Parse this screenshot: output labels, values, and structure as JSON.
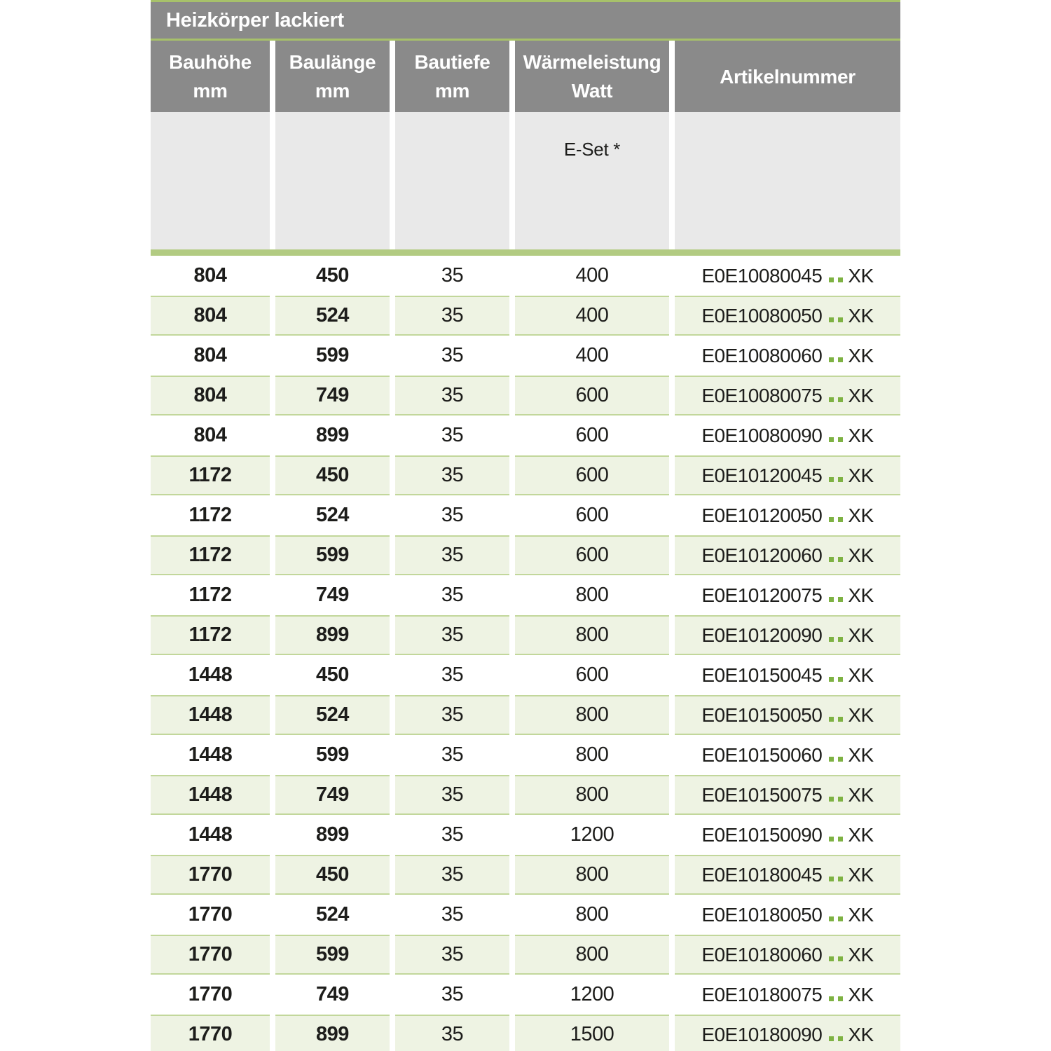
{
  "title": "Heizkörper lackiert",
  "columns": [
    {
      "line1": "Bauhöhe",
      "line2": "mm"
    },
    {
      "line1": "Baulänge",
      "line2": "mm"
    },
    {
      "line1": "Bautiefe",
      "line2": "mm"
    },
    {
      "line1": "Wärmeleistung",
      "line2": "Watt"
    },
    {
      "line1": "Artikelnummer",
      "line2": ""
    }
  ],
  "subheader": {
    "e_set_label": "E-Set *"
  },
  "article_separator": "..",
  "colors": {
    "header_gray": "#8a8a8a",
    "subheader_gray": "#e9e9e9",
    "accent_green": "#a7c16a",
    "bar_green": "#b2cb82",
    "row_green": "#eef3e3",
    "row_border_green": "#c2d79b",
    "dot_green": "#7eb243",
    "text_dark": "#1d1d1b"
  },
  "rows": [
    {
      "height": "804",
      "length": "450",
      "depth": "35",
      "watt": "400",
      "article_prefix": "E0E10080045",
      "article_suffix": "XK"
    },
    {
      "height": "804",
      "length": "524",
      "depth": "35",
      "watt": "400",
      "article_prefix": "E0E10080050",
      "article_suffix": "XK"
    },
    {
      "height": "804",
      "length": "599",
      "depth": "35",
      "watt": "400",
      "article_prefix": "E0E10080060",
      "article_suffix": "XK"
    },
    {
      "height": "804",
      "length": "749",
      "depth": "35",
      "watt": "600",
      "article_prefix": "E0E10080075",
      "article_suffix": "XK"
    },
    {
      "height": "804",
      "length": "899",
      "depth": "35",
      "watt": "600",
      "article_prefix": "E0E10080090",
      "article_suffix": "XK"
    },
    {
      "height": "1172",
      "length": "450",
      "depth": "35",
      "watt": "600",
      "article_prefix": "E0E10120045",
      "article_suffix": "XK"
    },
    {
      "height": "1172",
      "length": "524",
      "depth": "35",
      "watt": "600",
      "article_prefix": "E0E10120050",
      "article_suffix": "XK"
    },
    {
      "height": "1172",
      "length": "599",
      "depth": "35",
      "watt": "600",
      "article_prefix": "E0E10120060",
      "article_suffix": "XK"
    },
    {
      "height": "1172",
      "length": "749",
      "depth": "35",
      "watt": "800",
      "article_prefix": "E0E10120075",
      "article_suffix": "XK"
    },
    {
      "height": "1172",
      "length": "899",
      "depth": "35",
      "watt": "800",
      "article_prefix": "E0E10120090",
      "article_suffix": "XK"
    },
    {
      "height": "1448",
      "length": "450",
      "depth": "35",
      "watt": "600",
      "article_prefix": "E0E10150045",
      "article_suffix": "XK"
    },
    {
      "height": "1448",
      "length": "524",
      "depth": "35",
      "watt": "800",
      "article_prefix": "E0E10150050",
      "article_suffix": "XK"
    },
    {
      "height": "1448",
      "length": "599",
      "depth": "35",
      "watt": "800",
      "article_prefix": "E0E10150060",
      "article_suffix": "XK"
    },
    {
      "height": "1448",
      "length": "749",
      "depth": "35",
      "watt": "800",
      "article_prefix": "E0E10150075",
      "article_suffix": "XK"
    },
    {
      "height": "1448",
      "length": "899",
      "depth": "35",
      "watt": "1200",
      "article_prefix": "E0E10150090",
      "article_suffix": "XK"
    },
    {
      "height": "1770",
      "length": "450",
      "depth": "35",
      "watt": "800",
      "article_prefix": "E0E10180045",
      "article_suffix": "XK"
    },
    {
      "height": "1770",
      "length": "524",
      "depth": "35",
      "watt": "800",
      "article_prefix": "E0E10180050",
      "article_suffix": "XK"
    },
    {
      "height": "1770",
      "length": "599",
      "depth": "35",
      "watt": "800",
      "article_prefix": "E0E10180060",
      "article_suffix": "XK"
    },
    {
      "height": "1770",
      "length": "749",
      "depth": "35",
      "watt": "1200",
      "article_prefix": "E0E10180075",
      "article_suffix": "XK"
    },
    {
      "height": "1770",
      "length": "899",
      "depth": "35",
      "watt": "1500",
      "article_prefix": "E0E10180090",
      "article_suffix": "XK"
    }
  ]
}
